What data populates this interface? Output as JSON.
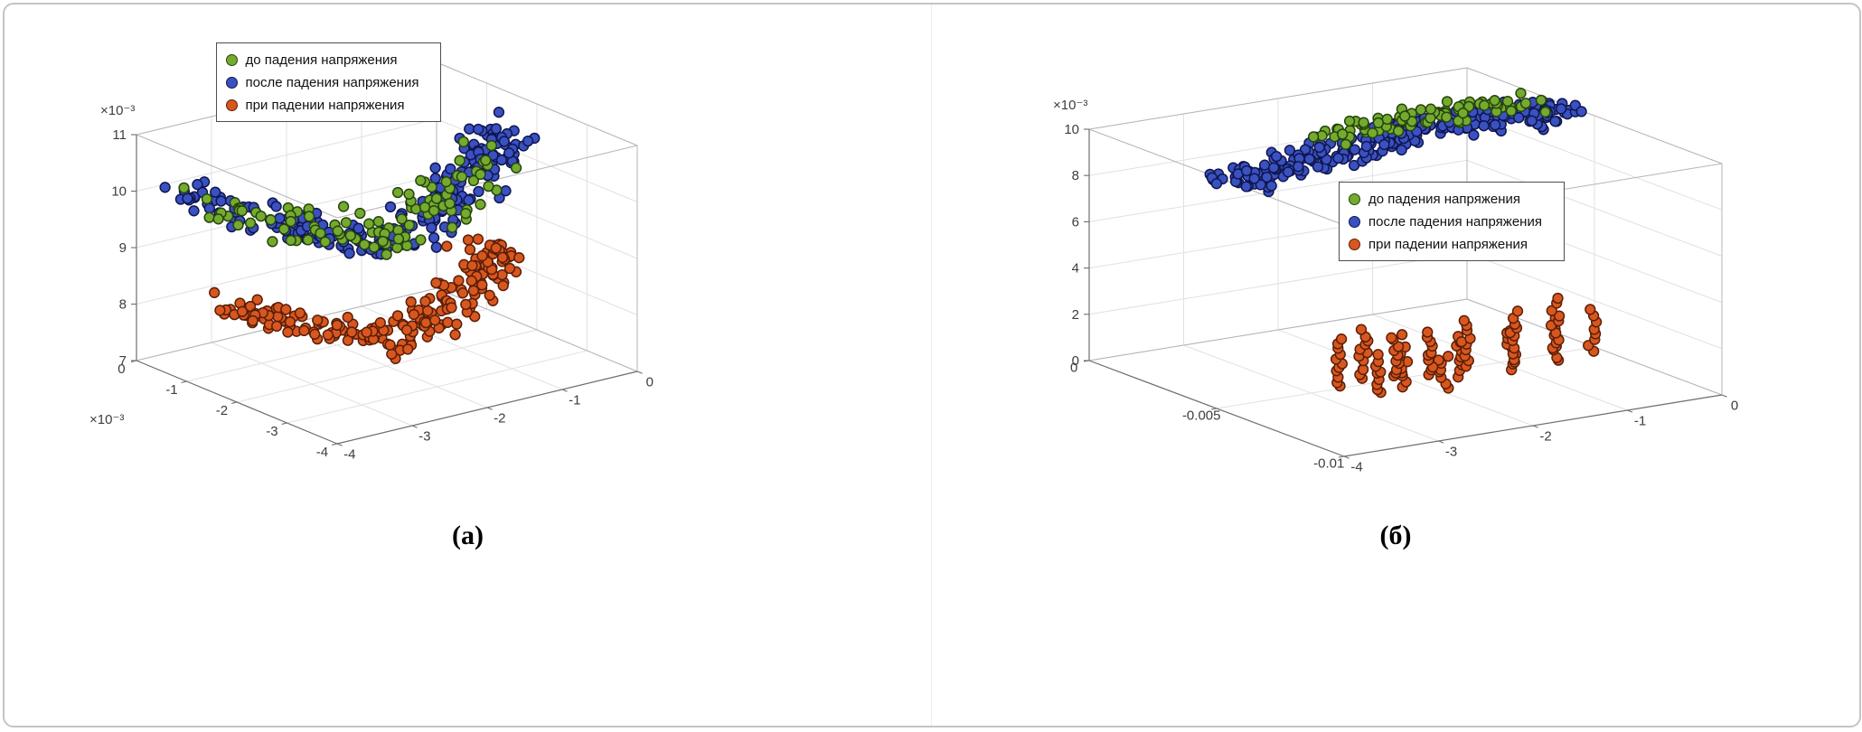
{
  "figure": {
    "background": "#ffffff",
    "border_color": "#c4c4c4"
  },
  "legend": {
    "items": [
      {
        "label": "до падения напряжения",
        "color": "#74ab2f",
        "edge": "#26430d"
      },
      {
        "label": "после падения напряжения",
        "color": "#3a51c1",
        "edge": "#10164e"
      },
      {
        "label": "при падении напряжения",
        "color": "#d8571e",
        "edge": "#5a1e08"
      }
    ]
  },
  "chart_data": [
    {
      "type": "scatter",
      "projection": "3d",
      "caption": "(а)",
      "legend_position": "top-left",
      "grid": true,
      "axes": {
        "x": {
          "range": [
            -4,
            0
          ],
          "ticks": [
            0,
            -1,
            -2,
            -3,
            -4
          ],
          "tick_labels": [
            "0",
            "-1",
            "-2",
            "-3",
            "-4"
          ],
          "multiplier": ""
        },
        "y": {
          "range": [
            -4,
            0
          ],
          "ticks": [
            0,
            -1,
            -2,
            -3,
            -4
          ],
          "tick_labels": [
            "0",
            "-1",
            "-2",
            "-3",
            "-4"
          ],
          "multiplier": "×10⁻³"
        },
        "z": {
          "range": [
            7,
            11
          ],
          "ticks": [
            7,
            8,
            9,
            10,
            11
          ],
          "tick_labels": [
            "7",
            "8",
            "9",
            "10",
            "11"
          ],
          "multiplier": "×10⁻³"
        }
      },
      "series": [
        {
          "key": "after-drop",
          "name": "после падения напряжения",
          "color_ref": 1,
          "kind": "sheet",
          "seed": 11,
          "count": 240,
          "spread": [
            0.22,
            0.7,
            0.3
          ],
          "spine": [
            [
              -3.9,
              -0.9,
              10.2
            ],
            [
              -3.2,
              -1.8,
              9.8
            ],
            [
              -2.4,
              -2.4,
              9.5
            ],
            [
              -1.6,
              -2.4,
              9.8
            ],
            [
              -0.8,
              -2.2,
              10.3
            ],
            [
              -0.3,
              -1.7,
              10.6
            ]
          ]
        },
        {
          "key": "before-drop",
          "name": "до падения напряжения",
          "color_ref": 0,
          "kind": "sheet",
          "seed": 7,
          "count": 100,
          "spread": [
            0.3,
            0.8,
            0.35
          ],
          "spine": [
            [
              -3.8,
              -1.0,
              10.0
            ],
            [
              -3.0,
              -1.9,
              9.7
            ],
            [
              -2.2,
              -2.4,
              9.5
            ],
            [
              -1.4,
              -2.3,
              9.8
            ],
            [
              -0.6,
              -2.0,
              10.2
            ]
          ]
        },
        {
          "key": "during-drop",
          "name": "при падении напряжения",
          "color_ref": 2,
          "kind": "sheet",
          "seed": 5,
          "count": 210,
          "spread": [
            0.22,
            0.6,
            0.28
          ],
          "spine": [
            [
              -3.7,
              -1.2,
              8.3
            ],
            [
              -3.0,
              -1.9,
              8.0
            ],
            [
              -2.2,
              -2.4,
              7.7
            ],
            [
              -1.4,
              -2.3,
              7.9
            ],
            [
              -0.7,
              -2.0,
              8.3
            ],
            [
              -0.3,
              -1.7,
              8.5
            ]
          ]
        }
      ]
    },
    {
      "type": "scatter",
      "projection": "3d",
      "caption": "(б)",
      "legend_position": "middle-right",
      "grid": true,
      "axes": {
        "x": {
          "range": [
            -4,
            0
          ],
          "ticks": [
            0,
            -1,
            -2,
            -3,
            -4
          ],
          "tick_labels": [
            "0",
            "-1",
            "-2",
            "-3",
            "-4"
          ],
          "multiplier": ""
        },
        "y": {
          "range": [
            -0.01,
            0
          ],
          "ticks": [
            0,
            -0.005,
            -0.01
          ],
          "tick_labels": [
            "0",
            "-0.005",
            "-0.01"
          ],
          "multiplier": ""
        },
        "z": {
          "range": [
            0,
            10
          ],
          "ticks": [
            0,
            2,
            4,
            6,
            8,
            10
          ],
          "tick_labels": [
            "0",
            "2",
            "4",
            "6",
            "8",
            "10"
          ],
          "multiplier": "×10⁻³"
        }
      },
      "series": [
        {
          "key": "after-drop",
          "name": "после падения напряжения",
          "color_ref": 1,
          "kind": "sheet",
          "seed": 21,
          "count": 280,
          "spread": [
            0.22,
            0.0012,
            0.28
          ],
          "spine": [
            [
              -3.7,
              -0.0045,
              9.2
            ],
            [
              -2.9,
              -0.004,
              9.5
            ],
            [
              -2.1,
              -0.0038,
              9.65
            ],
            [
              -1.3,
              -0.0035,
              9.8
            ],
            [
              -0.6,
              -0.0038,
              9.9
            ],
            [
              -0.1,
              -0.0042,
              10.0
            ]
          ]
        },
        {
          "key": "before-drop",
          "name": "до падения напряжения",
          "color_ref": 0,
          "kind": "sheet",
          "seed": 17,
          "count": 85,
          "spread": [
            0.3,
            0.001,
            0.22
          ],
          "spine": [
            [
              -2.3,
              -0.003,
              9.75
            ],
            [
              -1.5,
              -0.0028,
              9.85
            ],
            [
              -0.8,
              -0.003,
              9.95
            ],
            [
              -0.2,
              -0.0035,
              10.05
            ]
          ]
        },
        {
          "key": "during-drop",
          "name": "при падении напряжения",
          "color_ref": 2,
          "kind": "strips",
          "seed": 33,
          "jitter": [
            0.06,
            0.00025,
            0.12
          ],
          "strips": [
            [
              -2.7,
              -0.005,
              11,
              2.1
            ],
            [
              -2.55,
              -0.006,
              9,
              1.7
            ],
            [
              -2.4,
              -0.0048,
              12,
              2.2
            ],
            [
              -2.25,
              -0.0058,
              9,
              1.8
            ],
            [
              -2.1,
              -0.005,
              11,
              2.0
            ],
            [
              -1.95,
              -0.0063,
              8,
              1.5
            ],
            [
              -1.8,
              -0.0052,
              10,
              1.9
            ],
            [
              -1.6,
              -0.0056,
              9,
              1.8
            ],
            [
              -1.35,
              -0.005,
              10,
              2.0
            ],
            [
              -1.1,
              -0.0058,
              9,
              1.8
            ],
            [
              -0.85,
              -0.005,
              10,
              2.1
            ],
            [
              -0.6,
              -0.0057,
              9,
              1.9
            ],
            [
              -0.35,
              -0.0048,
              10,
              2.2
            ],
            [
              -0.15,
              -0.0055,
              8,
              1.9
            ]
          ]
        }
      ]
    }
  ]
}
